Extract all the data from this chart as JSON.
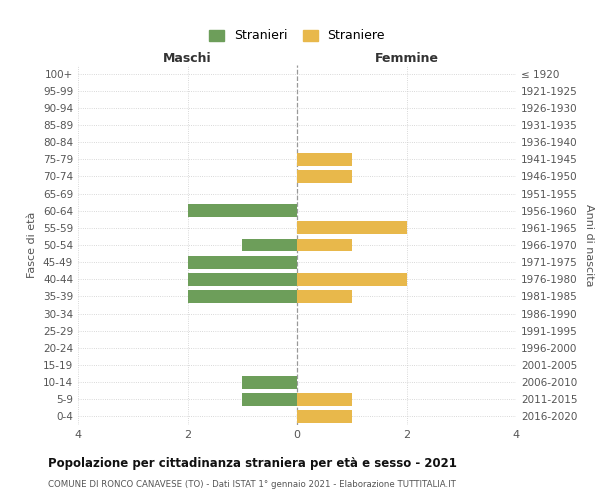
{
  "age_groups": [
    "100+",
    "95-99",
    "90-94",
    "85-89",
    "80-84",
    "75-79",
    "70-74",
    "65-69",
    "60-64",
    "55-59",
    "50-54",
    "45-49",
    "40-44",
    "35-39",
    "30-34",
    "25-29",
    "20-24",
    "15-19",
    "10-14",
    "5-9",
    "0-4"
  ],
  "birth_years": [
    "≤ 1920",
    "1921-1925",
    "1926-1930",
    "1931-1935",
    "1936-1940",
    "1941-1945",
    "1946-1950",
    "1951-1955",
    "1956-1960",
    "1961-1965",
    "1966-1970",
    "1971-1975",
    "1976-1980",
    "1981-1985",
    "1986-1990",
    "1991-1995",
    "1996-2000",
    "2001-2005",
    "2006-2010",
    "2011-2015",
    "2016-2020"
  ],
  "maschi": [
    0,
    0,
    0,
    0,
    0,
    0,
    0,
    0,
    2,
    0,
    1,
    2,
    2,
    2,
    0,
    0,
    0,
    0,
    1,
    1,
    0
  ],
  "femmine": [
    0,
    0,
    0,
    0,
    0,
    1,
    1,
    0,
    0,
    2,
    1,
    0,
    2,
    1,
    0,
    0,
    0,
    0,
    0,
    1,
    1
  ],
  "color_maschi": "#6d9e5a",
  "color_femmine": "#e8b84b",
  "title": "Popolazione per cittadinanza straniera per età e sesso - 2021",
  "subtitle": "COMUNE DI RONCO CANAVESE (TO) - Dati ISTAT 1° gennaio 2021 - Elaborazione TUTTITALIA.IT",
  "legend_maschi": "Stranieri",
  "legend_femmine": "Straniere",
  "label_maschi": "Maschi",
  "label_femmine": "Femmine",
  "ylabel_left": "Fasce di età",
  "ylabel_right": "Anni di nascita",
  "xlim": 4,
  "background_color": "#ffffff",
  "grid_color": "#cccccc",
  "bar_height": 0.75
}
